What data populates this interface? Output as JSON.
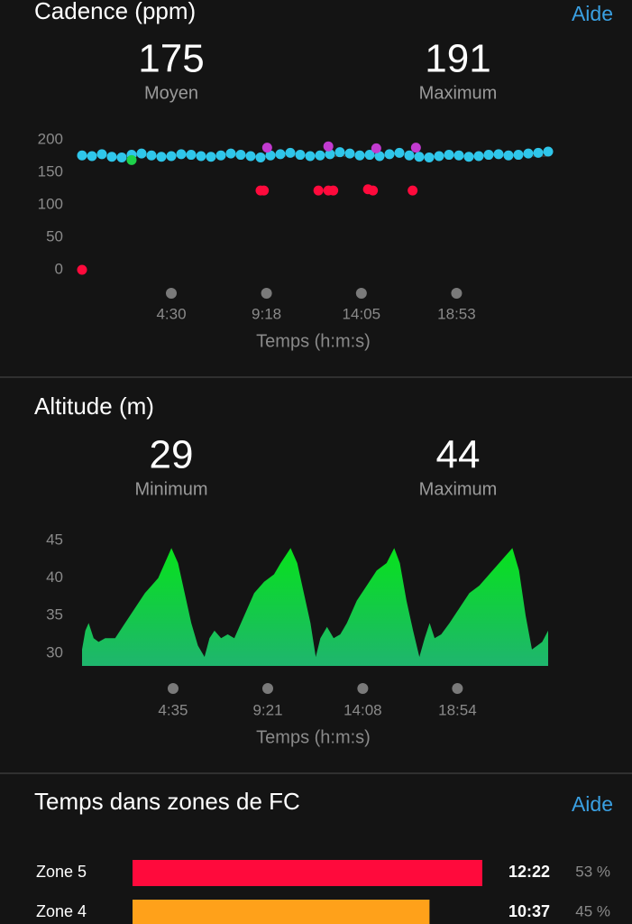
{
  "cadence": {
    "title": "Cadence (ppm)",
    "help": "Aide",
    "stats": [
      {
        "value": 175,
        "label": "Moyen"
      },
      {
        "value": 191,
        "label": "Maximum"
      }
    ]
  },
  "altitude": {
    "title": "Altitude (m)",
    "stats": [
      {
        "value": 29,
        "label": "Minimum"
      },
      {
        "value": 44,
        "label": "Maximum"
      }
    ]
  },
  "chart_data": [
    {
      "type": "scatter",
      "xlabel": "Temps (h:m:s)",
      "xlim": [
        0,
        1410
      ],
      "xticks": [
        {
          "value": 270,
          "label": "4:30"
        },
        {
          "value": 558,
          "label": "9:18"
        },
        {
          "value": 845,
          "label": "14:05"
        },
        {
          "value": 1133,
          "label": "18:53"
        }
      ],
      "ylim": [
        0,
        200
      ],
      "yticks": [
        0,
        50,
        100,
        150,
        200
      ],
      "series": [
        {
          "color": "#2fc6ea",
          "x": [
            0,
            30,
            60,
            90,
            120,
            150,
            180,
            210,
            240,
            270,
            300,
            330,
            360,
            390,
            420,
            450,
            480,
            510,
            540,
            570,
            600,
            630,
            660,
            690,
            720,
            750,
            780,
            810,
            840,
            870,
            900,
            930,
            960,
            990,
            1020,
            1050,
            1080,
            1110,
            1140,
            1170,
            1200,
            1230,
            1260,
            1290,
            1320,
            1350,
            1380,
            1410
          ],
          "values": [
            176,
            175,
            178,
            174,
            173,
            177,
            179,
            176,
            174,
            175,
            178,
            177,
            175,
            174,
            176,
            179,
            177,
            175,
            173,
            176,
            178,
            180,
            177,
            175,
            176,
            178,
            181,
            179,
            176,
            177,
            175,
            178,
            180,
            176,
            174,
            173,
            175,
            177,
            176,
            174,
            175,
            177,
            178,
            176,
            177,
            179,
            180,
            182
          ]
        },
        {
          "color": "#ff0a3c",
          "x": [
            0,
            540,
            550,
            715,
            745,
            760,
            865,
            880,
            1000
          ],
          "values": [
            0,
            122,
            122,
            122,
            122,
            122,
            124,
            122,
            122
          ]
        },
        {
          "color": "#c23bd0",
          "x": [
            560,
            745,
            890,
            1010
          ],
          "values": [
            188,
            190,
            187,
            188
          ]
        },
        {
          "color": "#1ed14a",
          "x": [
            150
          ],
          "values": [
            169
          ]
        }
      ]
    },
    {
      "type": "area",
      "xlabel": "Temps (h:m:s)",
      "xlim": [
        0,
        1408
      ],
      "xticks": [
        {
          "value": 275,
          "label": "4:35"
        },
        {
          "value": 561,
          "label": "9:21"
        },
        {
          "value": 848,
          "label": "14:08"
        },
        {
          "value": 1134,
          "label": "18:54"
        }
      ],
      "ylim": [
        28.3,
        45
      ],
      "yticks": [
        30,
        35,
        40,
        45
      ],
      "x": [
        0,
        10,
        20,
        35,
        50,
        70,
        100,
        130,
        160,
        190,
        210,
        230,
        250,
        270,
        290,
        310,
        330,
        350,
        370,
        385,
        400,
        420,
        440,
        460,
        490,
        520,
        550,
        580,
        600,
        630,
        650,
        670,
        690,
        706,
        720,
        740,
        760,
        780,
        800,
        830,
        860,
        890,
        920,
        943,
        960,
        980,
        1000,
        1019,
        1035,
        1050,
        1065,
        1085,
        1110,
        1140,
        1170,
        1200,
        1230,
        1260,
        1280,
        1300,
        1320,
        1340,
        1359,
        1375,
        1390,
        1408
      ],
      "values": [
        30.5,
        33,
        34,
        32,
        31.5,
        32,
        32,
        34,
        36,
        38,
        39,
        40,
        42,
        44,
        42,
        38,
        34,
        31,
        29.5,
        32,
        33,
        32,
        32.5,
        32,
        35,
        38,
        39.5,
        40.5,
        42,
        44,
        42,
        38,
        34,
        29.5,
        32,
        33.5,
        32,
        32.5,
        34,
        37,
        39,
        41,
        42,
        44,
        42,
        37,
        33,
        29.5,
        32,
        34,
        32,
        32.5,
        34,
        36,
        38,
        39,
        40.5,
        42,
        43,
        44,
        41,
        35,
        30.5,
        31,
        31.5,
        33
      ]
    }
  ],
  "zones": {
    "title": "Temps dans zones de FC",
    "help": "Aide",
    "rows": [
      {
        "zone": "Zone 5",
        "time": "12:22",
        "percent": 53,
        "percent_label": "53 %",
        "color": "#ff0a3c"
      },
      {
        "zone": "Zone 4",
        "time": "10:37",
        "percent": 45,
        "percent_label": "45 %",
        "color": "#ffa11a"
      }
    ]
  }
}
